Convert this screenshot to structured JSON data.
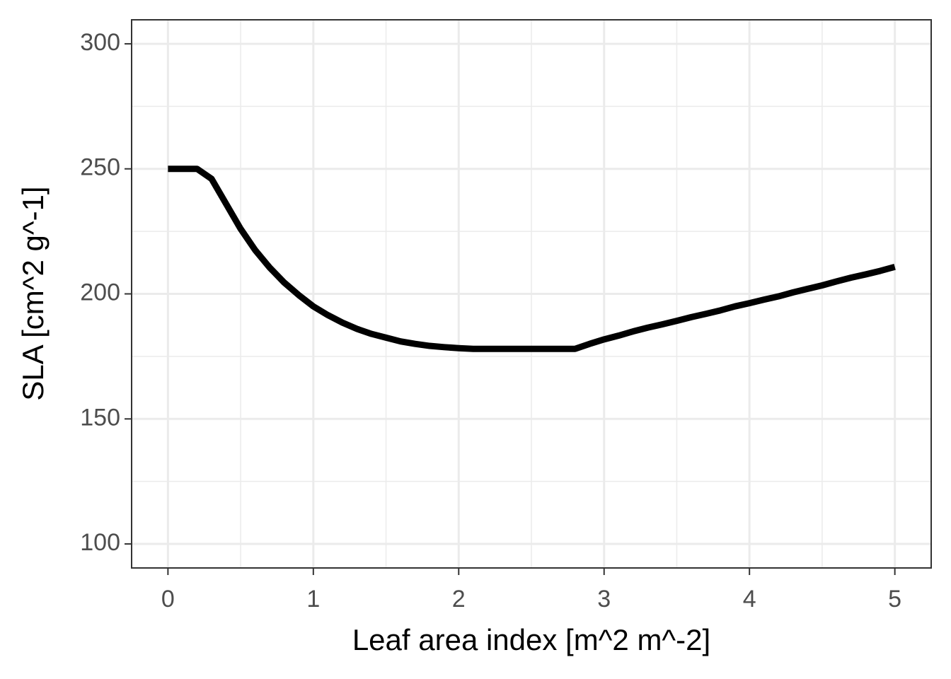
{
  "chart_data": {
    "type": "line",
    "x_label": "Leaf area index [m^2 m^-2]",
    "y_label": "SLA [cm^2 g^-1]",
    "x": [
      0,
      0.1,
      0.2,
      0.3,
      0.4,
      0.5,
      0.6,
      0.7,
      0.8,
      0.9,
      1.0,
      1.1,
      1.2,
      1.3,
      1.4,
      1.5,
      1.6,
      1.7,
      1.8,
      1.9,
      2.0,
      2.1,
      2.2,
      2.3,
      2.4,
      2.5,
      2.6,
      2.7,
      2.8,
      2.9,
      3.0,
      3.1,
      3.2,
      3.3,
      3.4,
      3.5,
      3.6,
      3.7,
      3.8,
      3.9,
      4.0,
      4.1,
      4.2,
      4.3,
      4.4,
      4.5,
      4.6,
      4.7,
      4.8,
      4.9,
      5.0
    ],
    "values": [
      250,
      250,
      250,
      246,
      236,
      226,
      217.5,
      210.5,
      204.5,
      199.5,
      195,
      191.5,
      188.5,
      186,
      184,
      182.5,
      181,
      180,
      179.2,
      178.7,
      178.3,
      178,
      178,
      178,
      178,
      178,
      178,
      178,
      178,
      180,
      181.8,
      183.3,
      185,
      186.5,
      187.8,
      189.2,
      190.7,
      192,
      193.4,
      195,
      196.3,
      197.7,
      199,
      200.6,
      202,
      203.4,
      205,
      206.5,
      207.8,
      209.2,
      210.8
    ],
    "color": "#000000",
    "xlim": [
      -0.25,
      5.25
    ],
    "ylim": [
      90.4,
      309.6
    ],
    "xticks": [
      0,
      1,
      2,
      3,
      4,
      5
    ],
    "yticks": [
      100,
      150,
      200,
      250,
      300
    ],
    "x_minor_grid": [
      0.5,
      1.5,
      2.5,
      3.5,
      4.5
    ],
    "y_minor_grid": [
      125,
      175,
      225,
      275
    ],
    "grid": true
  }
}
